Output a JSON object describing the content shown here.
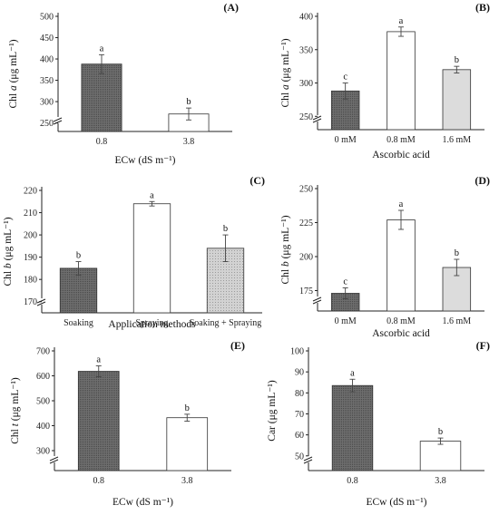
{
  "chart_data": [
    {
      "panel": "(A)",
      "type": "bar",
      "font": "serif",
      "ylabel": "Chl a (μg mL⁻¹)",
      "ylabel_italic": "a",
      "xlabel": "ECw (dS m⁻¹)",
      "ylim": [
        230,
        500
      ],
      "yticks": [
        250,
        300,
        350,
        400,
        450,
        500
      ],
      "axis_break": true,
      "categories": [
        "0.8",
        "3.8"
      ],
      "values": [
        388,
        271
      ],
      "errors": [
        22,
        14
      ],
      "letters": [
        "a",
        "b"
      ],
      "colors": [
        "#6e6e6e",
        "#ffffff"
      ],
      "patterns": [
        "dots",
        "none"
      ]
    },
    {
      "panel": "(B)",
      "type": "bar",
      "font": "serif",
      "ylabel": "Chl a (μg mL⁻¹)",
      "ylabel_italic": "a",
      "xlabel": "Ascorbic acid",
      "ylim": [
        230,
        400
      ],
      "yticks": [
        250,
        300,
        350,
        400
      ],
      "axis_break": true,
      "categories": [
        "0 mM",
        "0.8 mM",
        "1.6 mM"
      ],
      "values": [
        288,
        377,
        320
      ],
      "errors": [
        12,
        7,
        5
      ],
      "letters": [
        "c",
        "a",
        "b"
      ],
      "colors": [
        "#6e6e6e",
        "#ffffff",
        "#dcdcdc"
      ],
      "patterns": [
        "dots",
        "none",
        "none"
      ]
    },
    {
      "panel": "(C)",
      "type": "bar",
      "font": "serif",
      "ylabel": "Chl b (μg mL⁻¹)",
      "ylabel_italic": "b",
      "xlabel": "Application methods",
      "ylim": [
        165,
        220
      ],
      "yticks": [
        170,
        180,
        190,
        200,
        210,
        220
      ],
      "axis_break": true,
      "categories": [
        "Soaking",
        "Spraying",
        "Soaking + Spraying"
      ],
      "values": [
        185,
        214,
        194
      ],
      "errors": [
        3,
        1,
        6
      ],
      "letters": [
        "b",
        "a",
        "b"
      ],
      "colors": [
        "#6e6e6e",
        "#ffffff",
        "#cfcfcf"
      ],
      "patterns": [
        "dots",
        "none",
        "dots"
      ]
    },
    {
      "panel": "(D)",
      "type": "bar",
      "font": "serif",
      "ylabel": "Chl b (μg mL⁻¹)",
      "ylabel_italic": "b",
      "xlabel": "Ascorbic acid",
      "ylim": [
        160,
        250
      ],
      "yticks": [
        175,
        200,
        225,
        250
      ],
      "axis_break": true,
      "categories": [
        "0 mM",
        "0.8 mM",
        "1.6 mM"
      ],
      "values": [
        173,
        227,
        192
      ],
      "errors": [
        4,
        7,
        6
      ],
      "letters": [
        "c",
        "a",
        "b"
      ],
      "colors": [
        "#6e6e6e",
        "#ffffff",
        "#dcdcdc"
      ],
      "patterns": [
        "dots",
        "none",
        "none"
      ]
    },
    {
      "panel": "(E)",
      "type": "bar",
      "font": "sans",
      "ylabel": "Chl t (μg mL⁻¹)",
      "ylabel_italic": "t",
      "xlabel": "ECw (dS m⁻¹)",
      "ylim": [
        220,
        700
      ],
      "yticks": [
        300,
        400,
        500,
        600,
        700
      ],
      "axis_break": true,
      "categories": [
        "0.8",
        "3.8"
      ],
      "values": [
        618,
        432
      ],
      "errors": [
        22,
        14
      ],
      "letters": [
        "a",
        "b"
      ],
      "colors": [
        "#6e6e6e",
        "#ffffff"
      ],
      "patterns": [
        "dots",
        "none"
      ]
    },
    {
      "panel": "(F)",
      "type": "bar",
      "font": "sans",
      "ylabel": "Car (μg mL⁻¹)",
      "ylabel_italic": "",
      "xlabel": "ECw (dS m⁻¹)",
      "ylim": [
        43,
        100
      ],
      "yticks": [
        50,
        60,
        70,
        80,
        90,
        100
      ],
      "axis_break": true,
      "categories": [
        "0.8",
        "3.8"
      ],
      "values": [
        83.5,
        57
      ],
      "errors": [
        3,
        1.5
      ],
      "letters": [
        "a",
        "b"
      ],
      "colors": [
        "#6e6e6e",
        "#ffffff"
      ],
      "patterns": [
        "dots",
        "none"
      ]
    }
  ]
}
